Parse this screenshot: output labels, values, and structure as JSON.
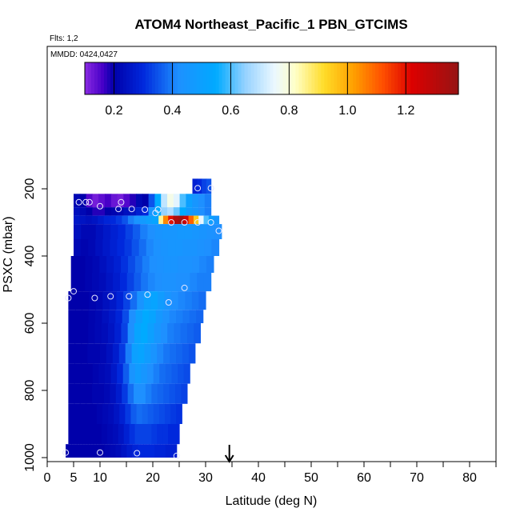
{
  "chart_data": {
    "type": "heatmap",
    "title": "ATOM4 Northeast_Pacific_1 PBN_GTCIMS",
    "flights_label": "Flts: 1,2",
    "dates_label": "MMDD: 0424,0427",
    "xlabel": "Latitude (deg N)",
    "ylabel": "PSXC (mbar)",
    "xlim": [
      0,
      85
    ],
    "ylim": [
      1000,
      100
    ],
    "x_ticks": [
      0,
      5,
      10,
      20,
      30,
      40,
      50,
      60,
      70,
      80
    ],
    "y_ticks": [
      200,
      400,
      600,
      800,
      1000
    ],
    "colorbar": {
      "range": [
        0.1,
        1.38
      ],
      "ticks": [
        0.2,
        0.4,
        0.6,
        0.8,
        1.0,
        1.2
      ],
      "tick_labels": [
        "0.2",
        "0.4",
        "0.6",
        "0.8",
        "1.0",
        "1.2"
      ]
    },
    "marker_latitude": 34.5,
    "bands": [
      {
        "p_top": 170,
        "p_bot": 215,
        "lat_min": 27.5,
        "lat_max": 31.0,
        "values": [
          0.28,
          0.3,
          0.33,
          0.35
        ]
      },
      {
        "p_top": 215,
        "p_bot": 255,
        "lat_min": 5.0,
        "lat_max": 31.0,
        "values": [
          0.22,
          0.2,
          0.15,
          0.12,
          0.14,
          0.16,
          0.13,
          0.12,
          0.15,
          0.18,
          0.22,
          0.2,
          0.35,
          0.55,
          0.7,
          0.78,
          0.74,
          0.6,
          0.5,
          0.45,
          0.42,
          0.4
        ]
      },
      {
        "p_top": 255,
        "p_bot": 280,
        "lat_min": 5.0,
        "lat_max": 31.0,
        "values": [
          0.24,
          0.22,
          0.2,
          0.18,
          0.18,
          0.2,
          0.21,
          0.22,
          0.24,
          0.25,
          0.28,
          0.3,
          0.45,
          0.55,
          0.65,
          0.68,
          0.62,
          0.55,
          0.48,
          0.45,
          0.42,
          0.4
        ]
      },
      {
        "p_top": 280,
        "p_bot": 305,
        "lat_min": 21.0,
        "lat_max": 32.5,
        "values": [
          0.85,
          1.05,
          1.2,
          1.32,
          1.35,
          1.25,
          1.1,
          0.95,
          0.75,
          0.6,
          0.5,
          0.45
        ]
      },
      {
        "p_top": 280,
        "p_bot": 305,
        "lat_min": 5.0,
        "lat_max": 21.0,
        "values": [
          0.26,
          0.25,
          0.24,
          0.25,
          0.27,
          0.29,
          0.3,
          0.32,
          0.35,
          0.4,
          0.44,
          0.47,
          0.5,
          0.52
        ]
      },
      {
        "p_top": 305,
        "p_bot": 350,
        "lat_min": 5.0,
        "lat_max": 33.0,
        "values": [
          0.24,
          0.22,
          0.22,
          0.24,
          0.26,
          0.28,
          0.3,
          0.33,
          0.36,
          0.4,
          0.42,
          0.44,
          0.45,
          0.45,
          0.46,
          0.46,
          0.45,
          0.44,
          0.43,
          0.42
        ]
      },
      {
        "p_top": 350,
        "p_bot": 400,
        "lat_min": 5.0,
        "lat_max": 32.5,
        "values": [
          0.22,
          0.21,
          0.22,
          0.24,
          0.26,
          0.28,
          0.3,
          0.32,
          0.35,
          0.38,
          0.41,
          0.43,
          0.44,
          0.45,
          0.45,
          0.44,
          0.44,
          0.43,
          0.42,
          0.41
        ]
      },
      {
        "p_top": 400,
        "p_bot": 450,
        "lat_min": 4.5,
        "lat_max": 31.5,
        "values": [
          0.2,
          0.2,
          0.21,
          0.22,
          0.24,
          0.26,
          0.28,
          0.31,
          0.34,
          0.37,
          0.4,
          0.42,
          0.43,
          0.44,
          0.44,
          0.43,
          0.43,
          0.42,
          0.41,
          0.4
        ]
      },
      {
        "p_top": 450,
        "p_bot": 505,
        "lat_min": 4.5,
        "lat_max": 31.0,
        "values": [
          0.2,
          0.2,
          0.21,
          0.22,
          0.23,
          0.25,
          0.27,
          0.3,
          0.33,
          0.36,
          0.39,
          0.41,
          0.42,
          0.43,
          0.43,
          0.42,
          0.42,
          0.41,
          0.4,
          0.4
        ]
      },
      {
        "p_top": 505,
        "p_bot": 560,
        "lat_min": 4.0,
        "lat_max": 30.0,
        "values": [
          0.2,
          0.2,
          0.2,
          0.21,
          0.22,
          0.24,
          0.26,
          0.29,
          0.33,
          0.38,
          0.44,
          0.5,
          0.52,
          0.48,
          0.44,
          0.42,
          0.41,
          0.4,
          0.39,
          0.38
        ]
      },
      {
        "p_top": 560,
        "p_bot": 600,
        "lat_min": 4.0,
        "lat_max": 29.5,
        "values": [
          0.2,
          0.2,
          0.2,
          0.21,
          0.22,
          0.24,
          0.26,
          0.29,
          0.34,
          0.42,
          0.5,
          0.55,
          0.52,
          0.46,
          0.43,
          0.41,
          0.4,
          0.39,
          0.38,
          0.37
        ]
      },
      {
        "p_top": 600,
        "p_bot": 660,
        "lat_min": 4.0,
        "lat_max": 29.0,
        "values": [
          0.2,
          0.2,
          0.2,
          0.21,
          0.22,
          0.23,
          0.25,
          0.28,
          0.33,
          0.42,
          0.52,
          0.55,
          0.5,
          0.45,
          0.42,
          0.4,
          0.39,
          0.38,
          0.37,
          0.36
        ]
      },
      {
        "p_top": 660,
        "p_bot": 720,
        "lat_min": 4.0,
        "lat_max": 28.0,
        "values": [
          0.2,
          0.2,
          0.2,
          0.21,
          0.21,
          0.22,
          0.24,
          0.27,
          0.32,
          0.4,
          0.5,
          0.52,
          0.48,
          0.44,
          0.41,
          0.39,
          0.38,
          0.37,
          0.36,
          0.35
        ]
      },
      {
        "p_top": 720,
        "p_bot": 780,
        "lat_min": 4.0,
        "lat_max": 27.0,
        "values": [
          0.2,
          0.2,
          0.2,
          0.2,
          0.21,
          0.22,
          0.23,
          0.26,
          0.3,
          0.36,
          0.44,
          0.48,
          0.45,
          0.42,
          0.4,
          0.38,
          0.37,
          0.36,
          0.35,
          0.34
        ]
      },
      {
        "p_top": 780,
        "p_bot": 840,
        "lat_min": 4.0,
        "lat_max": 26.5,
        "values": [
          0.2,
          0.2,
          0.2,
          0.2,
          0.21,
          0.21,
          0.22,
          0.24,
          0.27,
          0.32,
          0.38,
          0.42,
          0.42,
          0.4,
          0.38,
          0.37,
          0.36,
          0.35,
          0.34,
          0.33
        ]
      },
      {
        "p_top": 840,
        "p_bot": 900,
        "lat_min": 4.0,
        "lat_max": 25.5,
        "values": [
          0.2,
          0.2,
          0.2,
          0.2,
          0.2,
          0.21,
          0.22,
          0.23,
          0.25,
          0.28,
          0.32,
          0.36,
          0.38,
          0.37,
          0.36,
          0.35,
          0.34,
          0.33,
          0.32,
          0.31
        ]
      },
      {
        "p_top": 900,
        "p_bot": 960,
        "lat_min": 4.0,
        "lat_max": 25.0,
        "values": [
          0.2,
          0.2,
          0.2,
          0.2,
          0.2,
          0.2,
          0.21,
          0.22,
          0.23,
          0.25,
          0.28,
          0.31,
          0.33,
          0.33,
          0.33,
          0.32,
          0.31,
          0.31,
          0.3,
          0.3
        ]
      },
      {
        "p_top": 960,
        "p_bot": 1000,
        "lat_min": 3.5,
        "lat_max": 24.5,
        "values": [
          0.2,
          0.2,
          0.2,
          0.2,
          0.2,
          0.2,
          0.2,
          0.21,
          0.22,
          0.23,
          0.25,
          0.27,
          0.29,
          0.3,
          0.3,
          0.3,
          0.29,
          0.29,
          0.28,
          0.28
        ]
      }
    ],
    "points": [
      {
        "lat": 28.5,
        "p": 198
      },
      {
        "lat": 31.0,
        "p": 198
      },
      {
        "lat": 6.0,
        "p": 240
      },
      {
        "lat": 7.3,
        "p": 240
      },
      {
        "lat": 8.0,
        "p": 240
      },
      {
        "lat": 14.0,
        "p": 240
      },
      {
        "lat": 10.0,
        "p": 252
      },
      {
        "lat": 13.5,
        "p": 260
      },
      {
        "lat": 16.0,
        "p": 260
      },
      {
        "lat": 18.5,
        "p": 262
      },
      {
        "lat": 21.0,
        "p": 262
      },
      {
        "lat": 20.5,
        "p": 272
      },
      {
        "lat": 23.5,
        "p": 300
      },
      {
        "lat": 26.0,
        "p": 300
      },
      {
        "lat": 28.5,
        "p": 300
      },
      {
        "lat": 31.0,
        "p": 300
      },
      {
        "lat": 32.5,
        "p": 325
      },
      {
        "lat": 5.0,
        "p": 505
      },
      {
        "lat": 26.0,
        "p": 495
      },
      {
        "lat": 4.0,
        "p": 525
      },
      {
        "lat": 9.0,
        "p": 525
      },
      {
        "lat": 12.0,
        "p": 520
      },
      {
        "lat": 15.5,
        "p": 520
      },
      {
        "lat": 19.0,
        "p": 515
      },
      {
        "lat": 23.0,
        "p": 538
      },
      {
        "lat": 3.5,
        "p": 985
      },
      {
        "lat": 10.0,
        "p": 985
      },
      {
        "lat": 17.0,
        "p": 987
      },
      {
        "lat": 24.5,
        "p": 995
      }
    ]
  }
}
